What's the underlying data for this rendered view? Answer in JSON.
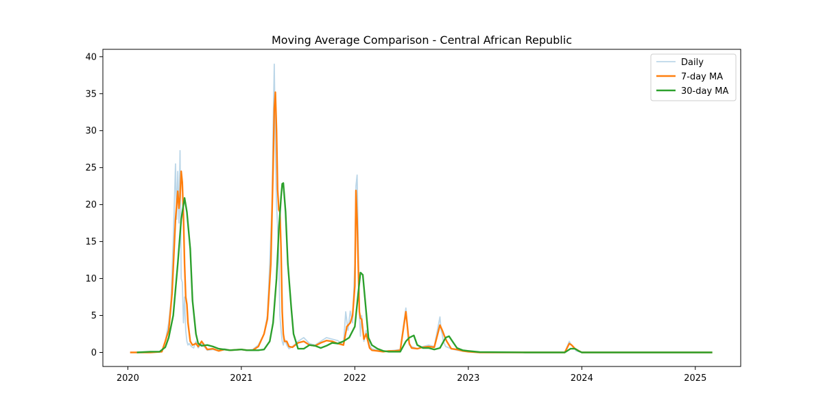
{
  "chart_data": {
    "type": "line",
    "title": "Moving Average Comparison - Central African Republic",
    "xlabel": "",
    "ylabel": "",
    "xlim": [
      2019.78,
      2025.4
    ],
    "ylim": [
      -1.9,
      41.0
    ],
    "x_ticks": [
      2020,
      2021,
      2022,
      2023,
      2024,
      2025
    ],
    "x_tick_labels": [
      "2020",
      "2021",
      "2022",
      "2023",
      "2024",
      "2025"
    ],
    "y_ticks": [
      0,
      5,
      10,
      15,
      20,
      25,
      30,
      35,
      40
    ],
    "y_tick_labels": [
      "0",
      "5",
      "10",
      "15",
      "20",
      "25",
      "30",
      "35",
      "40"
    ],
    "grid": false,
    "legend_position": "top-right",
    "colors": {
      "daily": "#1f77b4",
      "ma7": "#ff7f0e",
      "ma30": "#2ca02c",
      "axis": "#000000"
    },
    "series": [
      {
        "name": "Daily",
        "color": "#1f77b4",
        "opacity": 0.3,
        "x": [
          2020.02,
          2020.1,
          2020.2,
          2020.3,
          2020.33,
          2020.36,
          2020.38,
          2020.4,
          2020.42,
          2020.43,
          2020.44,
          2020.45,
          2020.46,
          2020.47,
          2020.48,
          2020.49,
          2020.5,
          2020.51,
          2020.52,
          2020.53,
          2020.54,
          2020.55,
          2020.56,
          2020.58,
          2020.6,
          2020.62,
          2020.65,
          2020.7,
          2020.75,
          2020.8,
          2020.85,
          2020.9,
          2021.0,
          2021.05,
          2021.1,
          2021.15,
          2021.2,
          2021.23,
          2021.25,
          2021.27,
          2021.28,
          2021.29,
          2021.3,
          2021.31,
          2021.32,
          2021.33,
          2021.34,
          2021.35,
          2021.36,
          2021.37,
          2021.38,
          2021.4,
          2021.42,
          2021.45,
          2021.5,
          2021.55,
          2021.6,
          2021.65,
          2021.7,
          2021.75,
          2021.8,
          2021.85,
          2021.9,
          2021.92,
          2021.94,
          2021.96,
          2021.98,
          2022.0,
          2022.01,
          2022.02,
          2022.03,
          2022.04,
          2022.05,
          2022.06,
          2022.08,
          2022.1,
          2022.13,
          2022.15,
          2022.2,
          2022.25,
          2022.3,
          2022.35,
          2022.4,
          2022.45,
          2022.46,
          2022.47,
          2022.48,
          2022.5,
          2022.55,
          2022.6,
          2022.65,
          2022.7,
          2022.75,
          2022.76,
          2022.77,
          2022.78,
          2022.8,
          2022.85,
          2022.9,
          2022.95,
          2023.0,
          2023.1,
          2023.5,
          2023.85,
          2023.89,
          2023.9,
          2023.92,
          2023.95,
          2024.0,
          2024.5,
          2025.15
        ],
        "y": [
          0,
          0,
          0,
          0.1,
          1.5,
          4.0,
          7.0,
          15.0,
          25.5,
          18.0,
          24.5,
          17.5,
          27.3,
          10.0,
          9.5,
          4.0,
          7.5,
          3.0,
          1.5,
          1.0,
          1.2,
          1.0,
          0.8,
          0.6,
          1.5,
          0.6,
          1.2,
          0.3,
          0.4,
          0.2,
          0.5,
          0.3,
          0.4,
          0.3,
          0.4,
          1.0,
          2.5,
          5.0,
          12.0,
          20.0,
          30.0,
          39.0,
          28.0,
          20.0,
          17.0,
          13.0,
          5.0,
          3.0,
          1.5,
          1.0,
          1.8,
          1.0,
          0.5,
          0.8,
          1.5,
          2.0,
          1.2,
          1.0,
          1.5,
          2.0,
          1.8,
          1.6,
          1.0,
          5.5,
          3.0,
          5.6,
          4.0,
          12.0,
          22.5,
          24.0,
          15.0,
          5.0,
          2.2,
          5.0,
          1.5,
          3.0,
          1.0,
          0.5,
          0.3,
          0.1,
          0.2,
          0.3,
          0.4,
          6.0,
          4.0,
          2.0,
          1.0,
          0.8,
          0.5,
          0.8,
          1.0,
          0.8,
          4.8,
          3.0,
          2.5,
          1.5,
          0.8,
          0.5,
          0.3,
          0.2,
          0.1,
          0,
          0,
          0,
          1.5,
          1.2,
          0.8,
          0.2,
          0,
          0,
          0
        ]
      },
      {
        "name": "7-day MA",
        "color": "#ff7f0e",
        "opacity": 1,
        "x": [
          2020.02,
          2020.1,
          2020.2,
          2020.3,
          2020.33,
          2020.36,
          2020.39,
          2020.42,
          2020.44,
          2020.45,
          2020.46,
          2020.47,
          2020.48,
          2020.49,
          2020.5,
          2020.51,
          2020.52,
          2020.53,
          2020.55,
          2020.57,
          2020.6,
          2020.62,
          2020.65,
          2020.7,
          2020.75,
          2020.8,
          2020.85,
          2020.9,
          2021.0,
          2021.05,
          2021.1,
          2021.15,
          2021.2,
          2021.23,
          2021.26,
          2021.28,
          2021.29,
          2021.3,
          2021.31,
          2021.32,
          2021.33,
          2021.34,
          2021.35,
          2021.36,
          2021.37,
          2021.38,
          2021.4,
          2021.42,
          2021.45,
          2021.5,
          2021.55,
          2021.6,
          2021.65,
          2021.7,
          2021.75,
          2021.8,
          2021.85,
          2021.9,
          2021.93,
          2021.96,
          2021.98,
          2022.0,
          2022.01,
          2022.02,
          2022.03,
          2022.04,
          2022.05,
          2022.06,
          2022.08,
          2022.1,
          2022.13,
          2022.15,
          2022.2,
          2022.25,
          2022.3,
          2022.35,
          2022.4,
          2022.45,
          2022.46,
          2022.47,
          2022.48,
          2022.5,
          2022.55,
          2022.6,
          2022.65,
          2022.7,
          2022.75,
          2022.77,
          2022.79,
          2022.81,
          2022.85,
          2022.9,
          2022.95,
          2023.0,
          2023.1,
          2023.5,
          2023.85,
          2023.89,
          2023.91,
          2023.94,
          2024.0,
          2024.5,
          2025.15
        ],
        "y": [
          0,
          0,
          0,
          0.1,
          1.5,
          3.0,
          8.0,
          18.0,
          21.8,
          19.5,
          21.0,
          24.5,
          23.0,
          18.5,
          12.0,
          7.5,
          6.5,
          4.0,
          1.5,
          1.0,
          1.2,
          0.8,
          1.5,
          0.4,
          0.5,
          0.2,
          0.4,
          0.3,
          0.4,
          0.3,
          0.3,
          0.8,
          2.5,
          4.5,
          12.0,
          25.0,
          33.0,
          35.2,
          30.0,
          22.0,
          19.3,
          19.0,
          14.0,
          5.5,
          2.5,
          1.5,
          1.5,
          0.8,
          0.7,
          1.3,
          1.5,
          1.0,
          0.9,
          1.3,
          1.6,
          1.5,
          1.2,
          1.0,
          3.5,
          4.0,
          5.0,
          9.0,
          21.9,
          18.0,
          12.0,
          5.5,
          4.6,
          4.5,
          1.8,
          2.5,
          0.6,
          0.3,
          0.2,
          0.1,
          0.2,
          0.2,
          0.3,
          5.5,
          4.0,
          2.5,
          1.2,
          0.6,
          0.5,
          0.7,
          0.8,
          0.7,
          3.7,
          3.0,
          2.2,
          1.5,
          0.5,
          0.4,
          0.2,
          0.1,
          0,
          0,
          0,
          1.2,
          1.0,
          0.5,
          0,
          0,
          0
        ]
      },
      {
        "name": "30-day MA",
        "color": "#2ca02c",
        "opacity": 1,
        "x": [
          2020.08,
          2020.2,
          2020.28,
          2020.33,
          2020.36,
          2020.4,
          2020.44,
          2020.47,
          2020.5,
          2020.52,
          2020.55,
          2020.57,
          2020.6,
          2020.62,
          2020.65,
          2020.7,
          2020.75,
          2020.8,
          2020.85,
          2020.9,
          2021.0,
          2021.05,
          2021.1,
          2021.15,
          2021.2,
          2021.25,
          2021.28,
          2021.31,
          2021.33,
          2021.35,
          2021.36,
          2021.37,
          2021.39,
          2021.41,
          2021.44,
          2021.46,
          2021.5,
          2021.55,
          2021.6,
          2021.65,
          2021.7,
          2021.75,
          2021.8,
          2021.85,
          2021.9,
          2021.95,
          2022.0,
          2022.03,
          2022.05,
          2022.07,
          2022.1,
          2022.12,
          2022.15,
          2022.2,
          2022.25,
          2022.3,
          2022.35,
          2022.4,
          2022.45,
          2022.48,
          2022.52,
          2022.55,
          2022.6,
          2022.65,
          2022.7,
          2022.75,
          2022.8,
          2022.83,
          2022.86,
          2022.9,
          2022.95,
          2023.0,
          2023.1,
          2023.5,
          2023.85,
          2023.9,
          2023.94,
          2023.97,
          2024.0,
          2024.5,
          2025.15
        ],
        "y": [
          0,
          0.1,
          0.1,
          0.7,
          2.0,
          5.0,
          12.0,
          18.0,
          20.9,
          19.0,
          14.0,
          7.0,
          2.5,
          1.2,
          0.9,
          1.0,
          0.8,
          0.5,
          0.4,
          0.3,
          0.4,
          0.3,
          0.3,
          0.3,
          0.4,
          1.5,
          4.0,
          10.0,
          16.5,
          21.0,
          22.8,
          22.9,
          19.0,
          12.0,
          6.0,
          2.5,
          0.5,
          0.5,
          1.0,
          0.9,
          0.6,
          0.9,
          1.3,
          1.2,
          1.5,
          2.0,
          3.5,
          8.0,
          10.8,
          10.5,
          5.5,
          2.0,
          1.0,
          0.5,
          0.2,
          0.1,
          0.1,
          0.1,
          1.5,
          2.0,
          2.3,
          1.0,
          0.6,
          0.6,
          0.4,
          0.6,
          2.0,
          2.2,
          1.5,
          0.6,
          0.3,
          0.2,
          0.05,
          0,
          0,
          0.5,
          0.5,
          0.2,
          0,
          0,
          0
        ]
      }
    ]
  }
}
